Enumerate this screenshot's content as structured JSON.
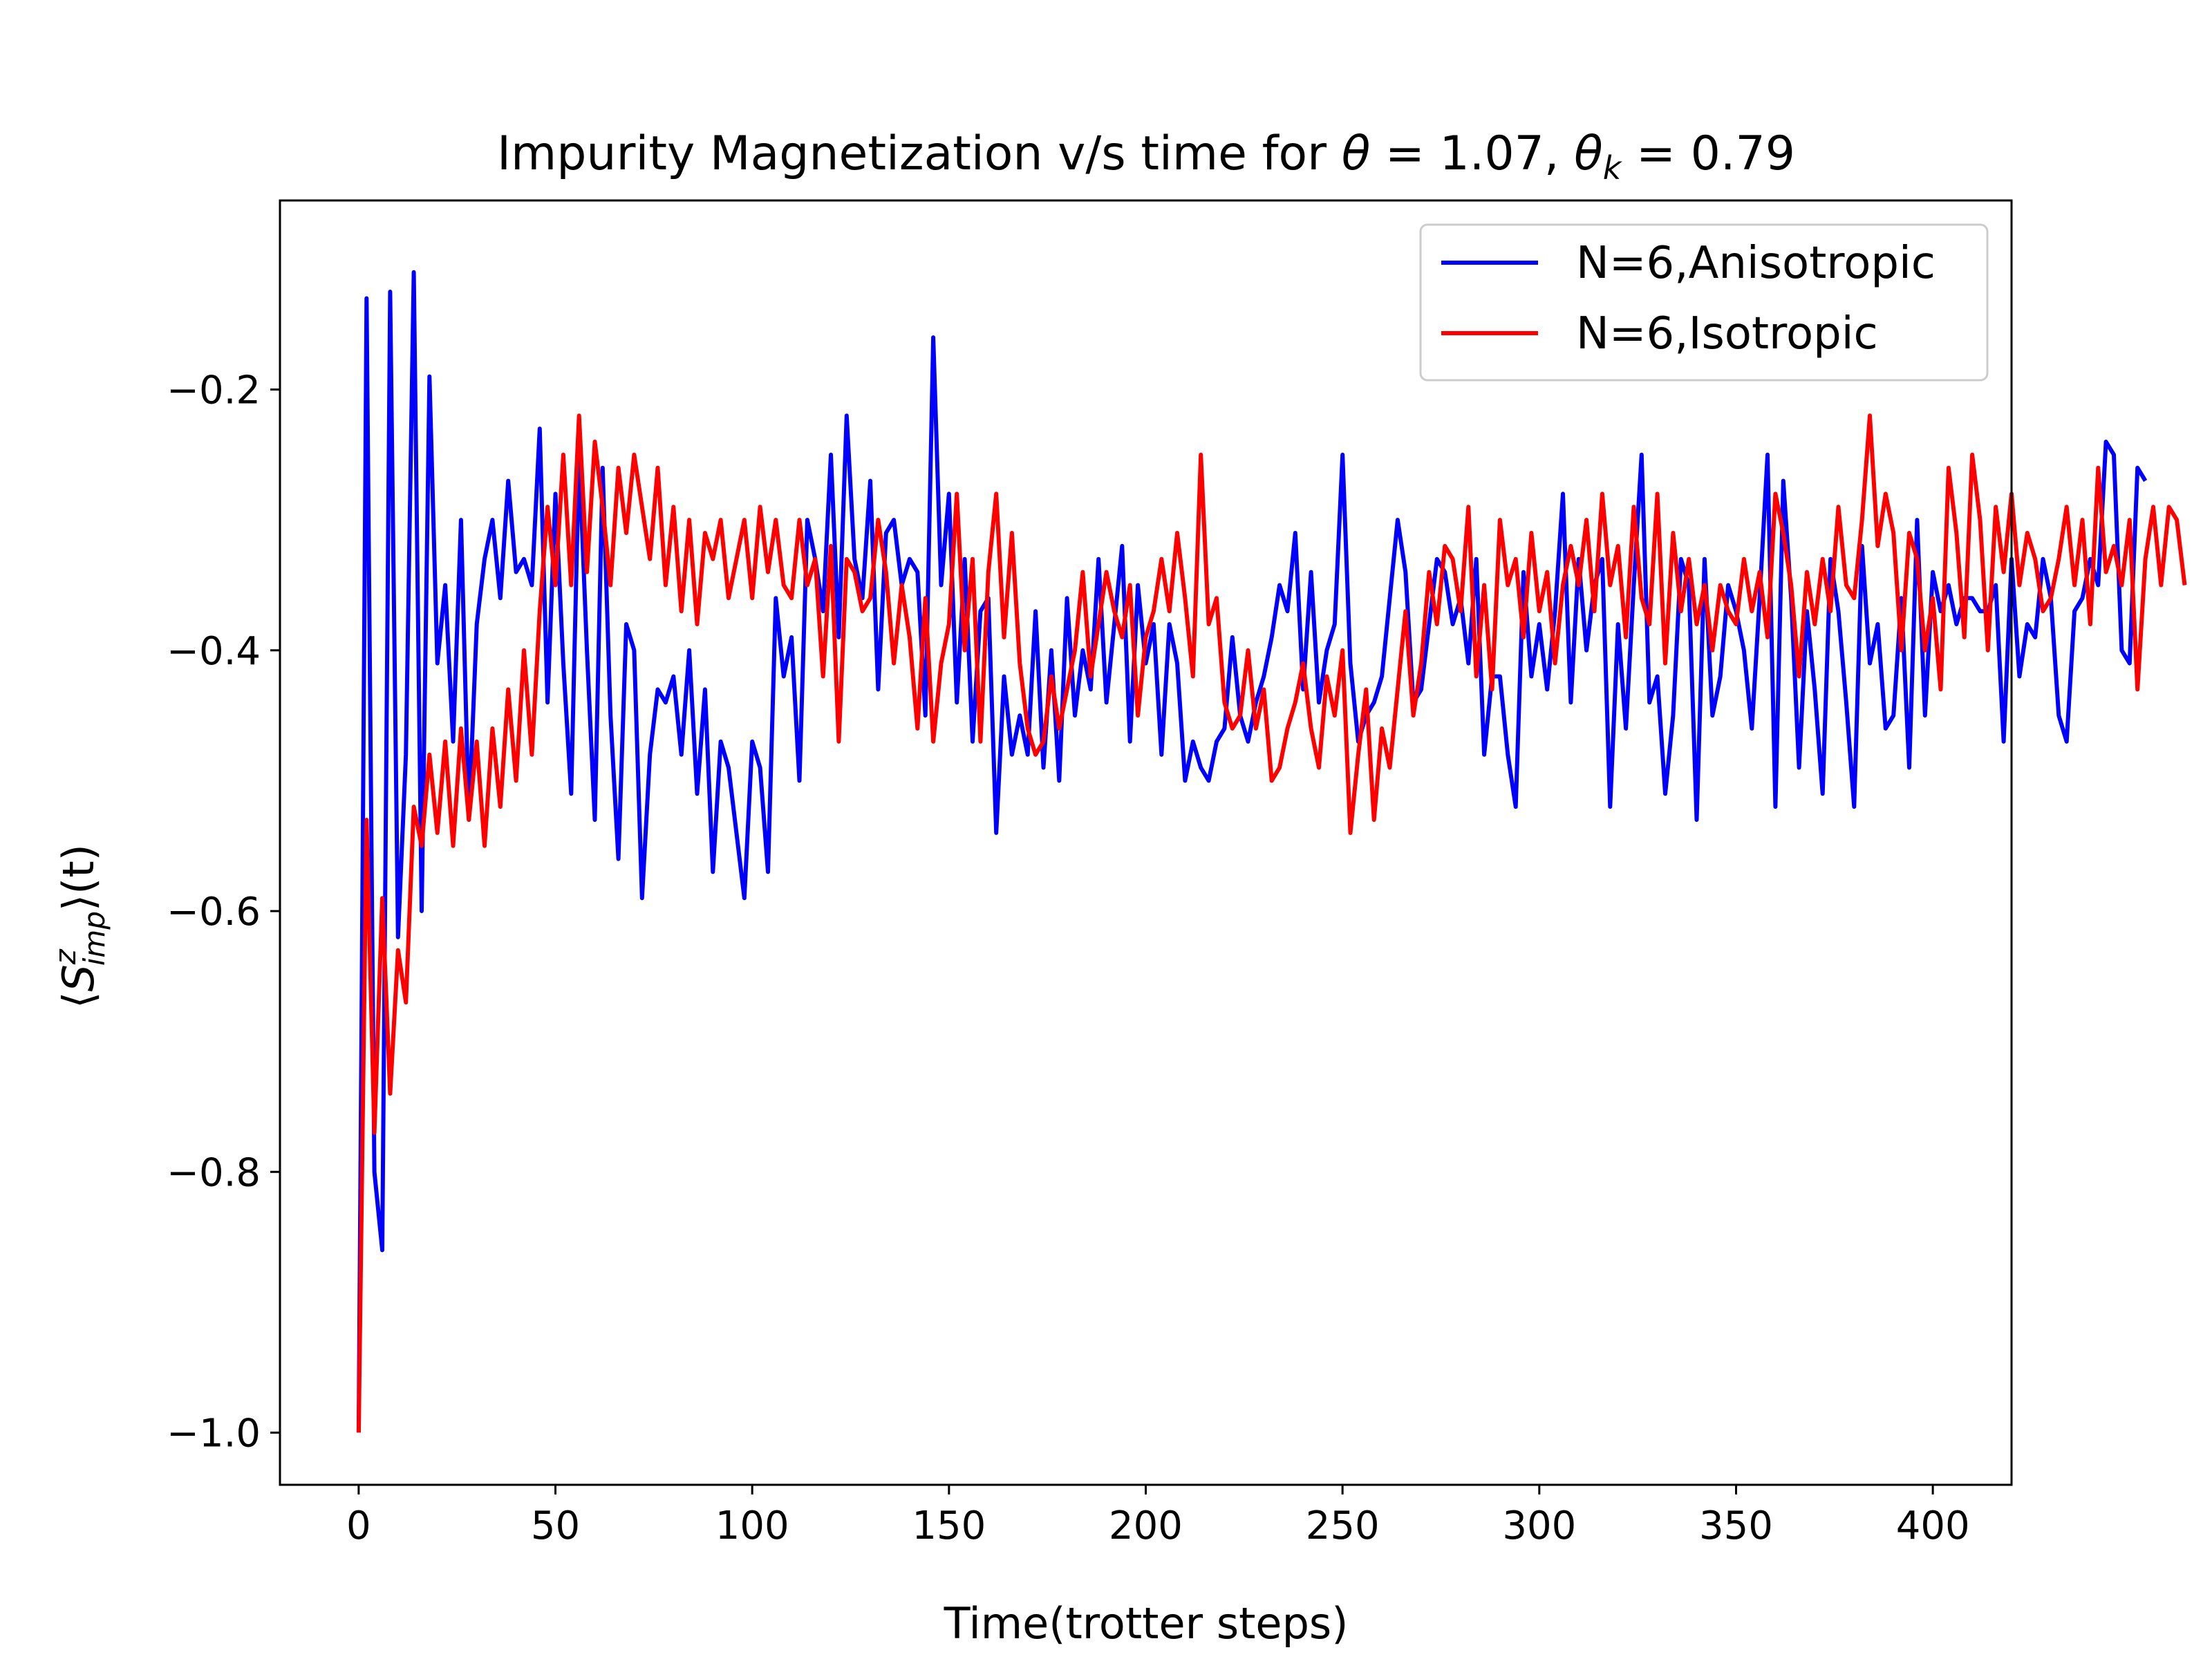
{
  "chart_data": {
    "type": "line",
    "title": {
      "main": "Impurity Magnetization v/s time for ",
      "theta_symbol": "θ",
      "theta_eq": " = 1.07,  ",
      "thetak_symbol": "θ",
      "thetak_sub": "k",
      "thetak_eq": " = 0.79"
    },
    "xlabel": "Time(trotter steps)",
    "ylabel": {
      "left": "⟨",
      "S": "S",
      "sup": "z",
      "sub": "imp",
      "right": "⟩(t)"
    },
    "xlim": [
      -20,
      420
    ],
    "ylim": [
      -1.04,
      -0.055
    ],
    "xticks": [
      0,
      50,
      100,
      150,
      200,
      250,
      300,
      350,
      400
    ],
    "xtick_labels": [
      "0",
      "50",
      "100",
      "150",
      "200",
      "250",
      "300",
      "350",
      "400"
    ],
    "yticks": [
      -1.0,
      -0.8,
      -0.6,
      -0.4,
      -0.2
    ],
    "ytick_labels": [
      "−1.0",
      "−0.8",
      "−0.6",
      "−0.4",
      "−0.2"
    ],
    "grid": false,
    "legend_position": "top-right",
    "x_start": 0,
    "x_step": 2,
    "series": [
      {
        "name": "N=6,Anisotropic",
        "color": "#0000ff",
        "values": [
          -1.0,
          -0.13,
          -0.8,
          -0.86,
          -0.125,
          -0.62,
          -0.48,
          -0.11,
          -0.6,
          -0.19,
          -0.41,
          -0.35,
          -0.47,
          -0.3,
          -0.53,
          -0.38,
          -0.33,
          -0.3,
          -0.36,
          -0.27,
          -0.34,
          -0.33,
          -0.35,
          -0.23,
          -0.44,
          -0.28,
          -0.41,
          -0.51,
          -0.25,
          -0.4,
          -0.53,
          -0.26,
          -0.45,
          -0.56,
          -0.38,
          -0.4,
          -0.59,
          -0.48,
          -0.43,
          -0.44,
          -0.42,
          -0.48,
          -0.4,
          -0.51,
          -0.43,
          -0.57,
          -0.47,
          -0.49,
          -0.54,
          -0.59,
          -0.47,
          -0.49,
          -0.57,
          -0.36,
          -0.42,
          -0.39,
          -0.5,
          -0.3,
          -0.33,
          -0.37,
          -0.25,
          -0.39,
          -0.22,
          -0.33,
          -0.36,
          -0.27,
          -0.43,
          -0.31,
          -0.3,
          -0.35,
          -0.33,
          -0.34,
          -0.45,
          -0.16,
          -0.35,
          -0.28,
          -0.44,
          -0.33,
          -0.47,
          -0.37,
          -0.36,
          -0.54,
          -0.42,
          -0.48,
          -0.45,
          -0.48,
          -0.37,
          -0.49,
          -0.4,
          -0.5,
          -0.36,
          -0.45,
          -0.4,
          -0.43,
          -0.33,
          -0.44,
          -0.38,
          -0.32,
          -0.47,
          -0.35,
          -0.41,
          -0.38,
          -0.48,
          -0.38,
          -0.41,
          -0.5,
          -0.47,
          -0.49,
          -0.5,
          -0.47,
          -0.46,
          -0.39,
          -0.45,
          -0.47,
          -0.44,
          -0.42,
          -0.39,
          -0.35,
          -0.37,
          -0.31,
          -0.43,
          -0.34,
          -0.44,
          -0.4,
          -0.38,
          -0.25,
          -0.41,
          -0.47,
          -0.45,
          -0.44,
          -0.42,
          -0.36,
          -0.3,
          -0.34,
          -0.44,
          -0.43,
          -0.38,
          -0.33,
          -0.34,
          -0.38,
          -0.36,
          -0.41,
          -0.33,
          -0.48,
          -0.42,
          -0.42,
          -0.48,
          -0.52,
          -0.34,
          -0.42,
          -0.38,
          -0.43,
          -0.37,
          -0.28,
          -0.44,
          -0.33,
          -0.4,
          -0.35,
          -0.33,
          -0.52,
          -0.38,
          -0.46,
          -0.35,
          -0.25,
          -0.44,
          -0.42,
          -0.51,
          -0.45,
          -0.33,
          -0.35,
          -0.53,
          -0.33,
          -0.45,
          -0.42,
          -0.35,
          -0.37,
          -0.4,
          -0.46,
          -0.36,
          -0.25,
          -0.52,
          -0.27,
          -0.36,
          -0.49,
          -0.37,
          -0.43,
          -0.51,
          -0.33,
          -0.37,
          -0.44,
          -0.52,
          -0.32,
          -0.41,
          -0.38,
          -0.46,
          -0.45,
          -0.36,
          -0.49,
          -0.3,
          -0.45,
          -0.34,
          -0.37,
          -0.35,
          -0.38,
          -0.36,
          -0.36,
          -0.37,
          -0.37,
          -0.35,
          -0.47,
          -0.33,
          -0.42,
          -0.38,
          -0.39,
          -0.33,
          -0.36,
          -0.45,
          -0.47,
          -0.37,
          -0.36,
          -0.33,
          -0.35,
          -0.24,
          -0.25,
          -0.4,
          -0.41,
          -0.26,
          -0.27
        ]
      },
      {
        "name": "N=6,Isotropic",
        "color": "#ff0000",
        "values": [
          -1.0,
          -0.53,
          -0.77,
          -0.59,
          -0.74,
          -0.63,
          -0.67,
          -0.52,
          -0.55,
          -0.48,
          -0.54,
          -0.47,
          -0.55,
          -0.46,
          -0.53,
          -0.47,
          -0.55,
          -0.46,
          -0.52,
          -0.43,
          -0.5,
          -0.4,
          -0.48,
          -0.37,
          -0.29,
          -0.35,
          -0.25,
          -0.35,
          -0.22,
          -0.34,
          -0.24,
          -0.29,
          -0.35,
          -0.26,
          -0.31,
          -0.25,
          -0.29,
          -0.33,
          -0.26,
          -0.35,
          -0.29,
          -0.37,
          -0.3,
          -0.38,
          -0.31,
          -0.33,
          -0.3,
          -0.36,
          -0.33,
          -0.3,
          -0.36,
          -0.29,
          -0.34,
          -0.3,
          -0.35,
          -0.36,
          -0.3,
          -0.35,
          -0.33,
          -0.42,
          -0.32,
          -0.47,
          -0.33,
          -0.34,
          -0.37,
          -0.36,
          -0.3,
          -0.34,
          -0.41,
          -0.35,
          -0.39,
          -0.46,
          -0.36,
          -0.47,
          -0.41,
          -0.38,
          -0.28,
          -0.4,
          -0.33,
          -0.47,
          -0.34,
          -0.28,
          -0.39,
          -0.31,
          -0.41,
          -0.46,
          -0.48,
          -0.47,
          -0.42,
          -0.46,
          -0.43,
          -0.4,
          -0.34,
          -0.42,
          -0.38,
          -0.34,
          -0.37,
          -0.39,
          -0.35,
          -0.45,
          -0.39,
          -0.37,
          -0.33,
          -0.37,
          -0.31,
          -0.36,
          -0.42,
          -0.25,
          -0.38,
          -0.36,
          -0.44,
          -0.46,
          -0.45,
          -0.4,
          -0.46,
          -0.43,
          -0.5,
          -0.49,
          -0.46,
          -0.44,
          -0.41,
          -0.46,
          -0.49,
          -0.42,
          -0.45,
          -0.4,
          -0.54,
          -0.48,
          -0.43,
          -0.53,
          -0.46,
          -0.49,
          -0.43,
          -0.37,
          -0.45,
          -0.41,
          -0.34,
          -0.38,
          -0.32,
          -0.33,
          -0.37,
          -0.29,
          -0.42,
          -0.35,
          -0.43,
          -0.3,
          -0.35,
          -0.33,
          -0.39,
          -0.31,
          -0.37,
          -0.34,
          -0.41,
          -0.35,
          -0.32,
          -0.35,
          -0.3,
          -0.37,
          -0.28,
          -0.35,
          -0.32,
          -0.39,
          -0.29,
          -0.36,
          -0.38,
          -0.28,
          -0.41,
          -0.31,
          -0.37,
          -0.33,
          -0.38,
          -0.35,
          -0.4,
          -0.35,
          -0.37,
          -0.38,
          -0.33,
          -0.37,
          -0.34,
          -0.39,
          -0.28,
          -0.31,
          -0.35,
          -0.42,
          -0.34,
          -0.38,
          -0.33,
          -0.37,
          -0.29,
          -0.35,
          -0.36,
          -0.3,
          -0.22,
          -0.32,
          -0.28,
          -0.31,
          -0.4,
          -0.31,
          -0.33,
          -0.4,
          -0.36,
          -0.43,
          -0.26,
          -0.31,
          -0.39,
          -0.25,
          -0.3,
          -0.4,
          -0.29,
          -0.34,
          -0.28,
          -0.35,
          -0.31,
          -0.33,
          -0.37,
          -0.36,
          -0.33,
          -0.29,
          -0.35,
          -0.3,
          -0.38,
          -0.26,
          -0.34,
          -0.32,
          -0.35,
          -0.3,
          -0.43,
          -0.33,
          -0.29,
          -0.35,
          -0.29,
          -0.3,
          -0.35
        ]
      }
    ]
  }
}
